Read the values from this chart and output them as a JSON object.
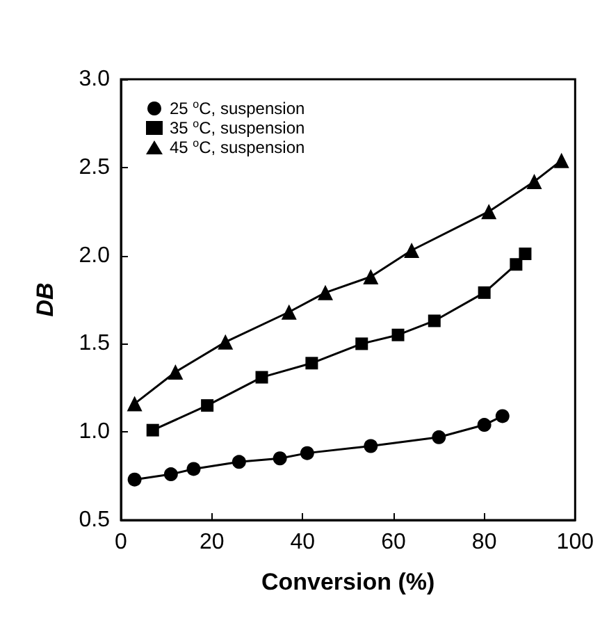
{
  "chart_data": {
    "type": "line",
    "xlabel": "Conversion (%)",
    "ylabel": "DB",
    "xlim": [
      0,
      100
    ],
    "xticks": [
      0,
      20,
      40,
      60,
      80,
      100
    ],
    "ylim": [
      0.5,
      3.0
    ],
    "yticks": [
      {
        "value": 0.5,
        "label": "0.5"
      },
      {
        "value": 1.0,
        "label": "1.0"
      },
      {
        "value": 1.5,
        "label": "1.5"
      },
      {
        "value": 2.0,
        "label": "2.0"
      },
      {
        "value": 2.5,
        "label": "2.5"
      },
      {
        "value": 3.0,
        "label": "3.0"
      }
    ],
    "grid": false,
    "legend": "top left",
    "line_style": "solid",
    "series": [
      {
        "name": "25 $^{o}$C, suspension",
        "color": "#000000",
        "marker": "circle",
        "x": [
          3,
          11,
          16,
          26,
          35,
          41,
          55,
          70,
          80,
          84
        ],
        "values": [
          0.73,
          0.76,
          0.79,
          0.83,
          0.85,
          0.88,
          0.92,
          0.97,
          1.04,
          1.09
        ]
      },
      {
        "name": "35 $^{o}$C, suspension",
        "color": "#000000",
        "marker": "square",
        "x": [
          7,
          19,
          31,
          42,
          53,
          61,
          69,
          80,
          87,
          89
        ],
        "values": [
          1.01,
          1.15,
          1.31,
          1.39,
          1.5,
          1.55,
          1.63,
          1.79,
          1.95,
          2.01
        ]
      },
      {
        "name": "45 $^{o}$C, suspension",
        "color": "#000000",
        "marker": "triangle",
        "x": [
          3,
          12,
          23,
          37,
          45,
          55,
          64,
          81,
          91,
          97
        ],
        "values": [
          1.16,
          1.34,
          1.51,
          1.68,
          1.79,
          1.88,
          2.03,
          2.25,
          2.42,
          2.54
        ]
      }
    ]
  }
}
